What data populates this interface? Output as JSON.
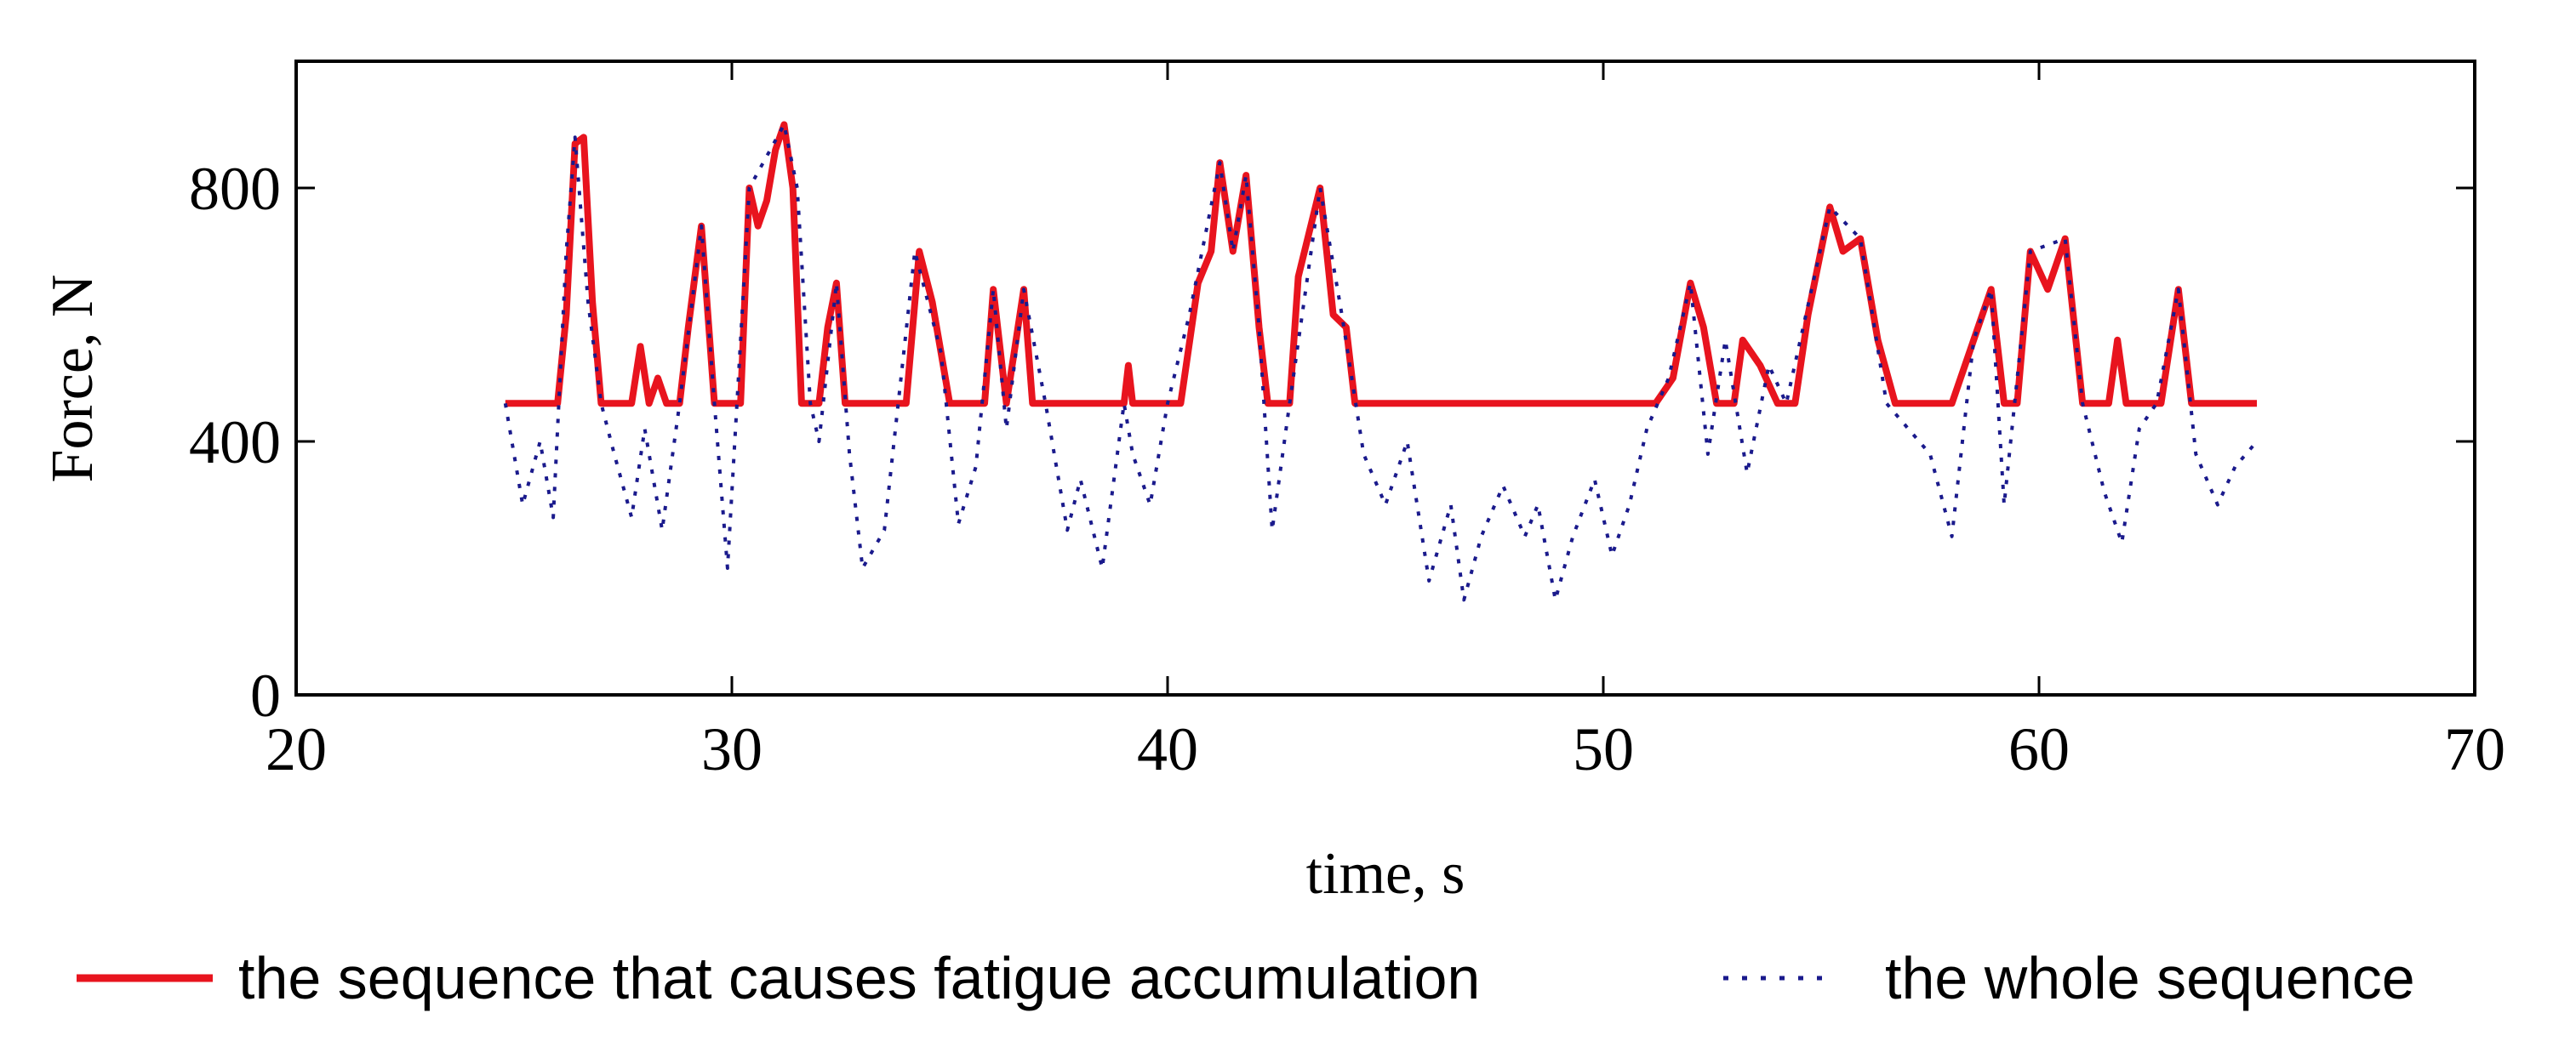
{
  "chart_data": {
    "type": "line",
    "title": "",
    "xlabel": "time, s",
    "ylabel": "Force, N",
    "xlim": [
      20,
      70
    ],
    "ylim": [
      0,
      1000
    ],
    "x_ticks": [
      20,
      30,
      40,
      50,
      60,
      70
    ],
    "y_ticks": [
      0,
      400,
      800
    ],
    "grid": false,
    "legend_position": "bottom",
    "series": [
      {
        "name": "the sequence that causes fatigue accumulation",
        "color": "#e8141e",
        "style": "solid",
        "points": [
          [
            24.8,
            460
          ],
          [
            26.0,
            460
          ],
          [
            26.2,
            600
          ],
          [
            26.4,
            870
          ],
          [
            26.6,
            880
          ],
          [
            26.8,
            620
          ],
          [
            27.0,
            460
          ],
          [
            27.7,
            460
          ],
          [
            27.9,
            550
          ],
          [
            28.1,
            460
          ],
          [
            28.3,
            500
          ],
          [
            28.5,
            460
          ],
          [
            28.8,
            460
          ],
          [
            29.0,
            580
          ],
          [
            29.3,
            740
          ],
          [
            29.6,
            460
          ],
          [
            30.2,
            460
          ],
          [
            30.4,
            800
          ],
          [
            30.6,
            740
          ],
          [
            30.8,
            780
          ],
          [
            31.0,
            860
          ],
          [
            31.2,
            900
          ],
          [
            31.4,
            800
          ],
          [
            31.6,
            460
          ],
          [
            32.0,
            460
          ],
          [
            32.2,
            580
          ],
          [
            32.4,
            650
          ],
          [
            32.6,
            460
          ],
          [
            34.0,
            460
          ],
          [
            34.3,
            700
          ],
          [
            34.6,
            620
          ],
          [
            34.8,
            540
          ],
          [
            35.0,
            460
          ],
          [
            35.8,
            460
          ],
          [
            36.0,
            640
          ],
          [
            36.3,
            460
          ],
          [
            36.7,
            640
          ],
          [
            36.9,
            460
          ],
          [
            39.0,
            460
          ],
          [
            39.1,
            520
          ],
          [
            39.2,
            460
          ],
          [
            40.3,
            460
          ],
          [
            40.7,
            650
          ],
          [
            41.0,
            700
          ],
          [
            41.2,
            840
          ],
          [
            41.5,
            700
          ],
          [
            41.8,
            820
          ],
          [
            42.1,
            580
          ],
          [
            42.3,
            460
          ],
          [
            42.8,
            460
          ],
          [
            43.0,
            660
          ],
          [
            43.5,
            800
          ],
          [
            43.8,
            600
          ],
          [
            44.1,
            580
          ],
          [
            44.3,
            460
          ],
          [
            51.2,
            460
          ],
          [
            51.6,
            500
          ],
          [
            52.0,
            650
          ],
          [
            52.3,
            580
          ],
          [
            52.6,
            460
          ],
          [
            53.0,
            460
          ],
          [
            53.2,
            560
          ],
          [
            53.6,
            520
          ],
          [
            54.0,
            460
          ],
          [
            54.4,
            460
          ],
          [
            54.7,
            600
          ],
          [
            55.2,
            770
          ],
          [
            55.5,
            700
          ],
          [
            55.9,
            720
          ],
          [
            56.3,
            560
          ],
          [
            56.7,
            460
          ],
          [
            58.0,
            460
          ],
          [
            58.5,
            560
          ],
          [
            58.9,
            640
          ],
          [
            59.2,
            460
          ],
          [
            59.5,
            460
          ],
          [
            59.8,
            700
          ],
          [
            60.2,
            640
          ],
          [
            60.6,
            720
          ],
          [
            61.0,
            460
          ],
          [
            61.6,
            460
          ],
          [
            61.8,
            560
          ],
          [
            62.0,
            460
          ],
          [
            62.8,
            460
          ],
          [
            63.2,
            640
          ],
          [
            63.5,
            460
          ],
          [
            65.0,
            460
          ]
        ]
      },
      {
        "name": "the whole sequence",
        "color": "#1a1a8c",
        "style": "dotted",
        "points": [
          [
            24.8,
            460
          ],
          [
            25.2,
            300
          ],
          [
            25.6,
            400
          ],
          [
            25.9,
            280
          ],
          [
            26.2,
            700
          ],
          [
            26.4,
            880
          ],
          [
            26.7,
            620
          ],
          [
            27.0,
            460
          ],
          [
            27.3,
            380
          ],
          [
            27.7,
            280
          ],
          [
            28.0,
            420
          ],
          [
            28.4,
            260
          ],
          [
            28.8,
            460
          ],
          [
            29.3,
            740
          ],
          [
            29.6,
            460
          ],
          [
            29.9,
            200
          ],
          [
            30.4,
            800
          ],
          [
            31.2,
            900
          ],
          [
            31.5,
            800
          ],
          [
            31.8,
            460
          ],
          [
            32.0,
            400
          ],
          [
            32.4,
            650
          ],
          [
            32.7,
            380
          ],
          [
            33.0,
            200
          ],
          [
            33.5,
            260
          ],
          [
            34.2,
            700
          ],
          [
            34.8,
            540
          ],
          [
            35.2,
            270
          ],
          [
            35.6,
            360
          ],
          [
            36.0,
            640
          ],
          [
            36.3,
            420
          ],
          [
            36.7,
            640
          ],
          [
            37.2,
            460
          ],
          [
            37.7,
            260
          ],
          [
            38.0,
            340
          ],
          [
            38.5,
            200
          ],
          [
            39.0,
            460
          ],
          [
            39.2,
            380
          ],
          [
            39.6,
            300
          ],
          [
            40.0,
            460
          ],
          [
            40.5,
            600
          ],
          [
            41.2,
            840
          ],
          [
            41.5,
            700
          ],
          [
            41.8,
            820
          ],
          [
            42.1,
            580
          ],
          [
            42.4,
            260
          ],
          [
            42.8,
            460
          ],
          [
            43.5,
            800
          ],
          [
            44.0,
            600
          ],
          [
            44.5,
            380
          ],
          [
            45.0,
            300
          ],
          [
            45.5,
            400
          ],
          [
            46.0,
            180
          ],
          [
            46.5,
            300
          ],
          [
            46.8,
            150
          ],
          [
            47.2,
            250
          ],
          [
            47.7,
            330
          ],
          [
            48.2,
            250
          ],
          [
            48.5,
            300
          ],
          [
            48.9,
            150
          ],
          [
            49.3,
            250
          ],
          [
            49.8,
            340
          ],
          [
            50.2,
            220
          ],
          [
            50.6,
            300
          ],
          [
            51.0,
            420
          ],
          [
            51.5,
            500
          ],
          [
            52.0,
            650
          ],
          [
            52.4,
            380
          ],
          [
            52.8,
            560
          ],
          [
            53.3,
            350
          ],
          [
            53.8,
            520
          ],
          [
            54.2,
            460
          ],
          [
            55.2,
            770
          ],
          [
            55.9,
            720
          ],
          [
            56.5,
            460
          ],
          [
            57.0,
            420
          ],
          [
            57.5,
            380
          ],
          [
            58.0,
            250
          ],
          [
            58.5,
            560
          ],
          [
            58.9,
            640
          ],
          [
            59.2,
            300
          ],
          [
            59.8,
            700
          ],
          [
            60.6,
            720
          ],
          [
            61.0,
            460
          ],
          [
            61.5,
            320
          ],
          [
            61.9,
            240
          ],
          [
            62.3,
            420
          ],
          [
            62.7,
            460
          ],
          [
            63.2,
            640
          ],
          [
            63.6,
            380
          ],
          [
            64.1,
            300
          ],
          [
            64.5,
            360
          ],
          [
            65.0,
            400
          ]
        ]
      }
    ]
  }
}
